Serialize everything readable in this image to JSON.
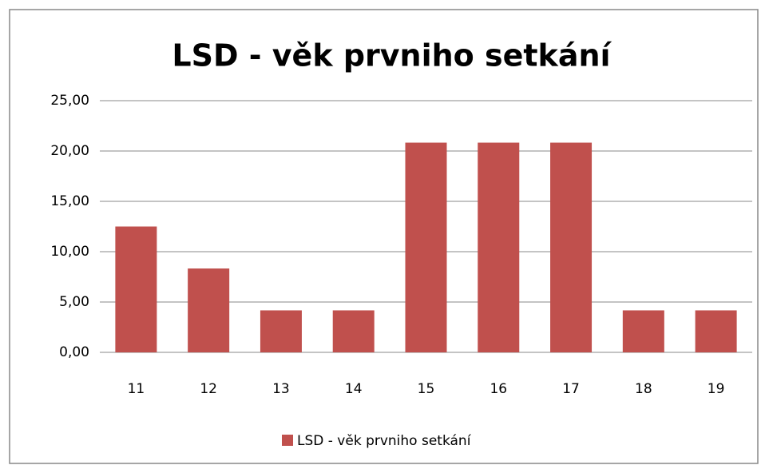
{
  "chart_data": {
    "type": "bar",
    "title": "LSD - věk prvniho setkání",
    "categories": [
      "11",
      "12",
      "13",
      "14",
      "15",
      "16",
      "17",
      "18",
      "19"
    ],
    "series": [
      {
        "name": "LSD - věk prvniho setkání",
        "color": "#c0504d",
        "values": [
          12.5,
          8.33,
          4.17,
          4.17,
          20.83,
          20.83,
          20.83,
          4.17,
          4.17
        ]
      }
    ],
    "ylim": [
      0,
      25
    ],
    "yticks": [
      {
        "value": 0,
        "label": "0,00"
      },
      {
        "value": 5,
        "label": "5,00"
      },
      {
        "value": 10,
        "label": "10,00"
      },
      {
        "value": 15,
        "label": "15,00"
      },
      {
        "value": 20,
        "label": "20,00"
      },
      {
        "value": 25,
        "label": "25,00"
      }
    ],
    "grid": true,
    "legend": "bottom"
  }
}
